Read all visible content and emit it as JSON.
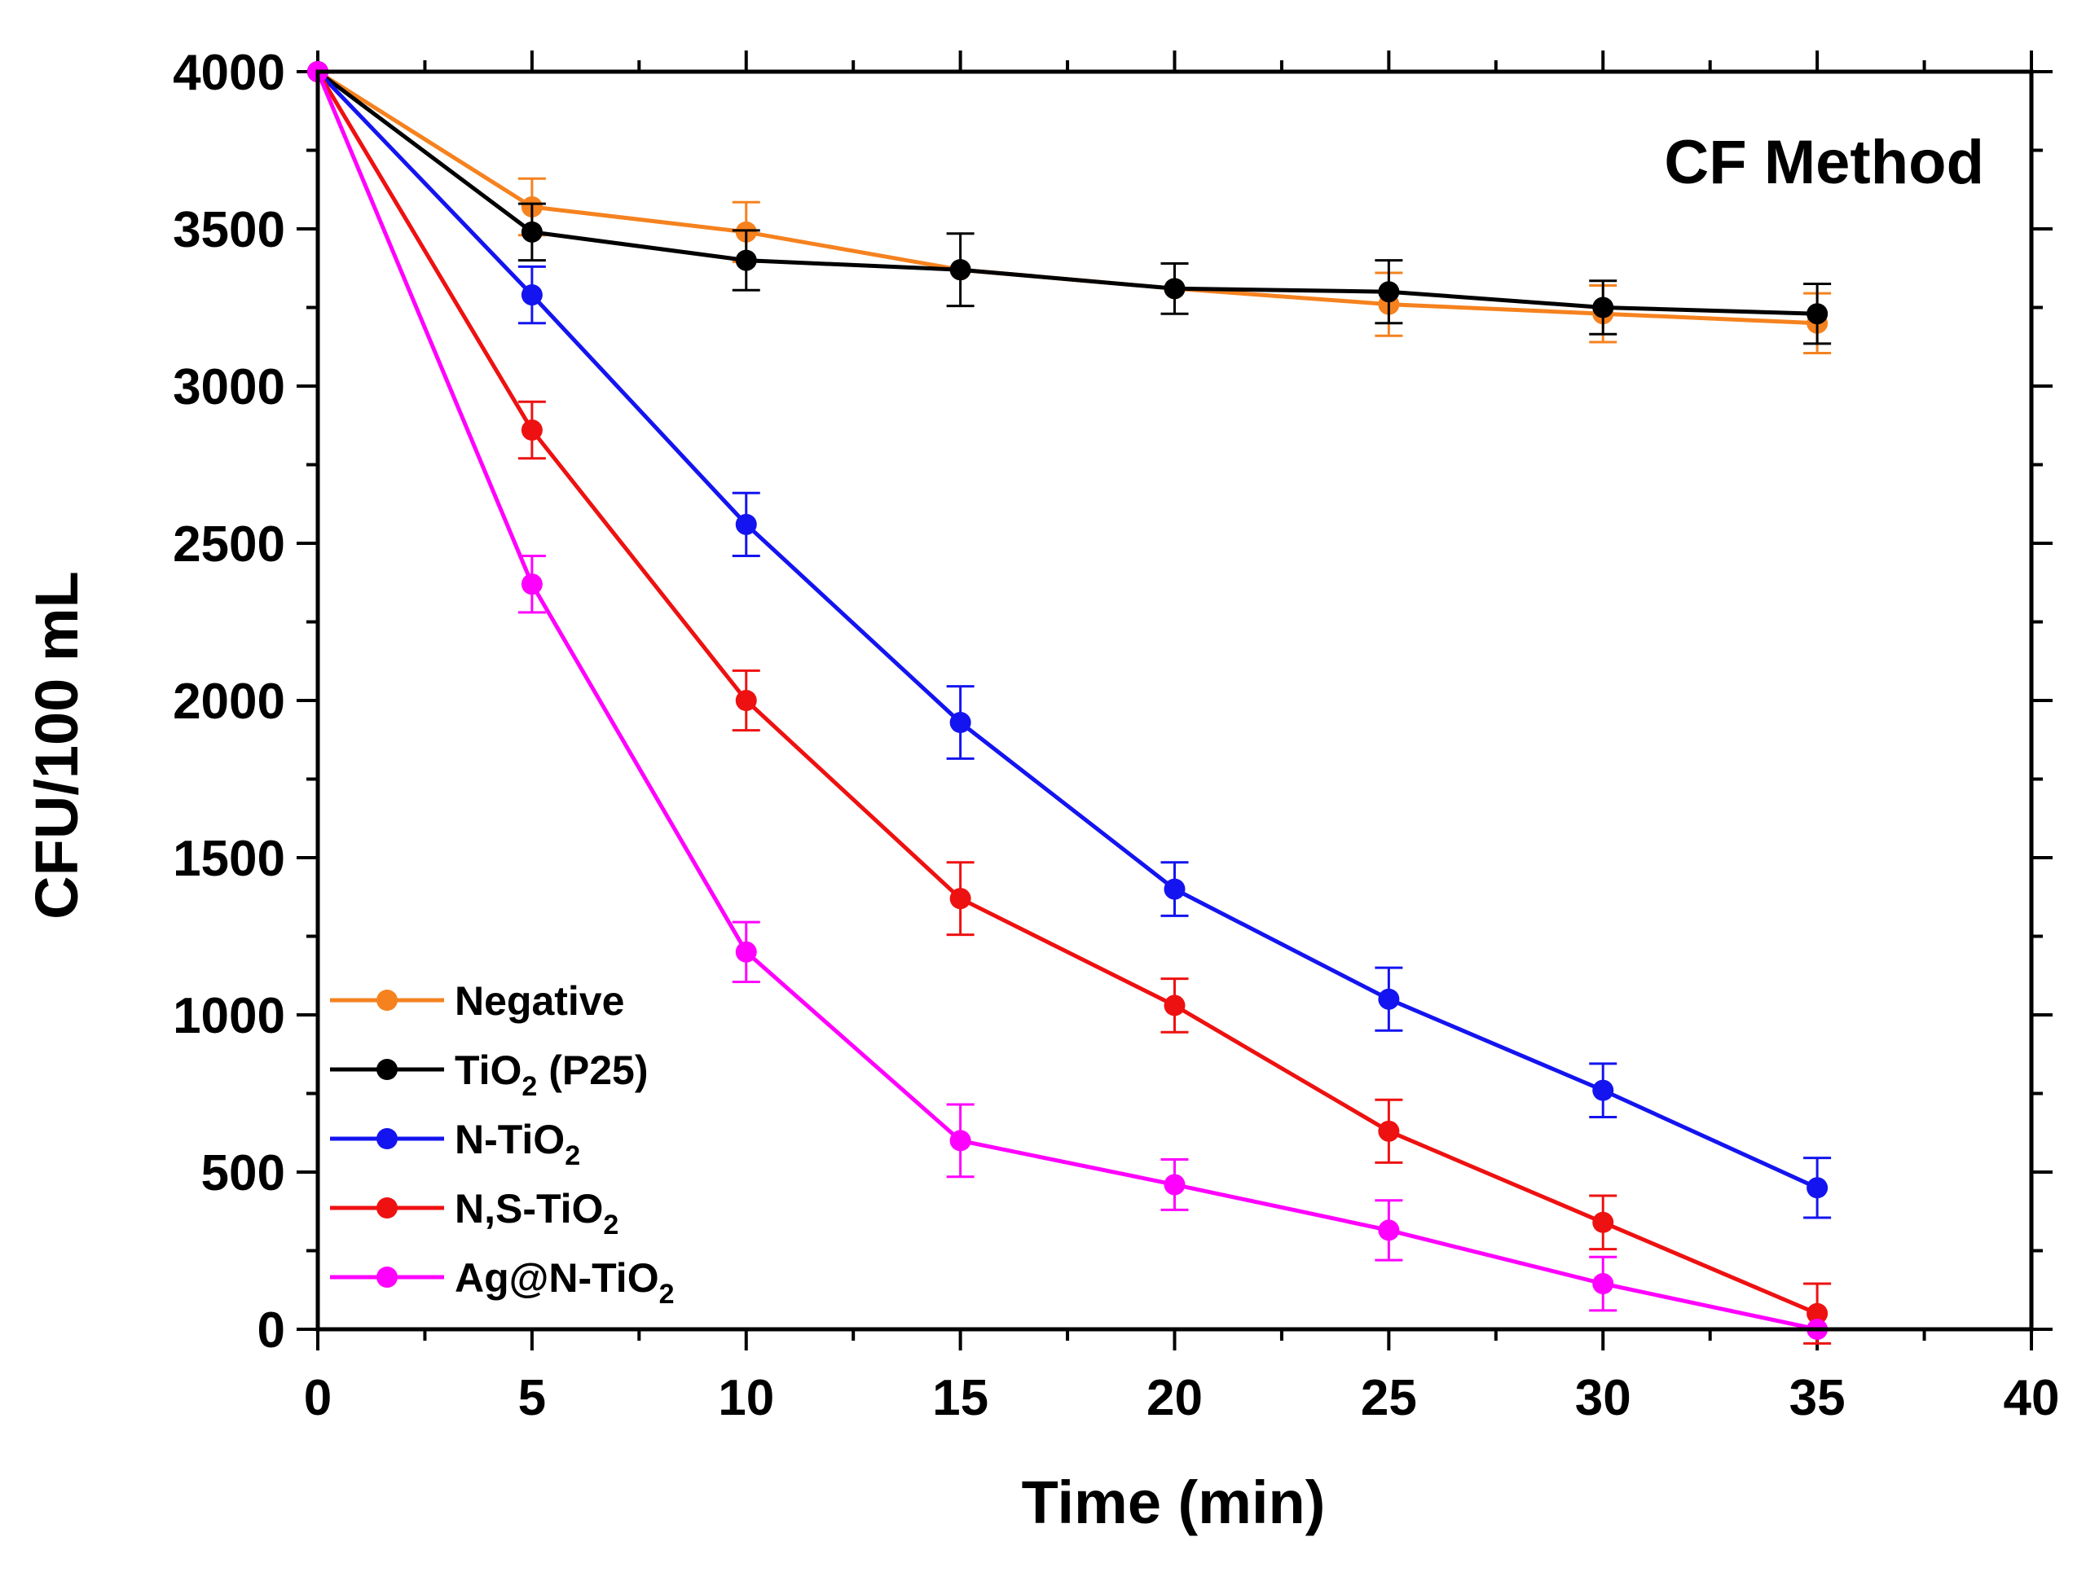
{
  "chart_data": {
    "type": "line",
    "title": "CF Method",
    "xlabel": "Time (min)",
    "ylabel": "CFU/100 mL",
    "xlim": [
      0,
      40
    ],
    "ylim": [
      0,
      4000
    ],
    "x_ticks": [
      0,
      5,
      10,
      15,
      20,
      25,
      30,
      35,
      40
    ],
    "y_ticks": [
      0,
      500,
      1000,
      1500,
      2000,
      2500,
      3000,
      3500,
      4000
    ],
    "x_tick_labels": [
      "0",
      "5",
      "10",
      "15",
      "20",
      "25",
      "30",
      "35",
      "40"
    ],
    "y_tick_labels": [
      "0",
      "500",
      "1000",
      "1500",
      "2000",
      "2500",
      "3000",
      "3500",
      "4000"
    ],
    "grid": false,
    "legend_position": "bottom-left",
    "x": [
      0,
      5,
      10,
      15,
      20,
      25,
      30,
      35
    ],
    "series": [
      {
        "name": "Negative",
        "label_main": "Negative",
        "label_sub": "",
        "label_tail": "",
        "color": "#F5821F",
        "values": [
          4000,
          3570,
          3490,
          3370,
          3310,
          3260,
          3230,
          3200
        ],
        "errors": [
          0,
          90,
          95,
          0,
          0,
          100,
          90,
          95
        ]
      },
      {
        "name": "TiO2 (P25)",
        "label_main": "TiO",
        "label_sub": "2",
        "label_tail": " (P25)",
        "color": "#000000",
        "values": [
          4000,
          3490,
          3400,
          3370,
          3310,
          3300,
          3250,
          3230
        ],
        "errors": [
          0,
          90,
          95,
          115,
          80,
          100,
          85,
          95
        ]
      },
      {
        "name": "N-TiO2",
        "label_main": "N-TiO",
        "label_sub": "2",
        "label_tail": "",
        "color": "#1414F0",
        "values": [
          4000,
          3290,
          2560,
          1930,
          1400,
          1050,
          760,
          450
        ],
        "errors": [
          0,
          90,
          100,
          115,
          85,
          100,
          85,
          95
        ]
      },
      {
        "name": "N,S-TiO2",
        "label_main": "N,S-TiO",
        "label_sub": "2",
        "label_tail": "",
        "color": "#EE1111",
        "values": [
          4000,
          2860,
          2000,
          1370,
          1030,
          630,
          340,
          50
        ],
        "errors": [
          0,
          90,
          95,
          115,
          85,
          100,
          85,
          95
        ]
      },
      {
        "name": "Ag@N-TiO2",
        "label_main": "Ag@N-TiO",
        "label_sub": "2",
        "label_tail": "",
        "color": "#FF00FF",
        "values": [
          4000,
          2370,
          1200,
          600,
          460,
          315,
          145,
          0
        ],
        "errors": [
          0,
          90,
          95,
          115,
          80,
          95,
          85,
          0
        ]
      }
    ]
  }
}
